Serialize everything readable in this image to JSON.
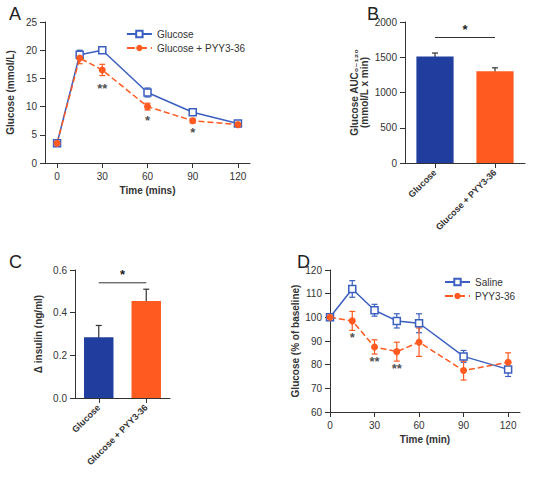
{
  "chart_data": [
    {
      "type": "line",
      "title": "A",
      "xlabel": "Time (mins)",
      "ylabel": "Glucose (mmol/L)",
      "x": [
        0,
        15,
        30,
        60,
        90,
        120
      ],
      "xlim": [
        -8,
        128
      ],
      "xticks": [
        0,
        30,
        60,
        90,
        120
      ],
      "ylim": [
        0,
        25
      ],
      "yticks": [
        0,
        5,
        10,
        15,
        20,
        25
      ],
      "grid": false,
      "legend": "upper right",
      "series": [
        {
          "name": "Glucose",
          "color": "#3b5fc0",
          "marker": "square-open",
          "line_style": "solid",
          "values": [
            3.5,
            19.2,
            20.0,
            12.5,
            9.0,
            7.0
          ],
          "errors": [
            0.2,
            0.8,
            0.5,
            0.8,
            0.3,
            0.3
          ]
        },
        {
          "name": "Glucose + PYY3-36",
          "color": "#ff5a1f",
          "marker": "circle",
          "line_style": "dashed",
          "values": [
            3.5,
            18.6,
            16.5,
            10.0,
            7.5,
            6.8
          ],
          "errors": [
            0.3,
            1.0,
            1.0,
            0.6,
            0.4,
            0.3
          ]
        }
      ],
      "annotations": [
        {
          "text": "**",
          "x": 30,
          "y": 13.2
        },
        {
          "text": "*",
          "x": 60,
          "y": 7.6
        },
        {
          "text": "*",
          "x": 90,
          "y": 5.4
        }
      ]
    },
    {
      "type": "bar",
      "title": "B",
      "ylabel": "Glucose AUC₀₋₁₂₀\n(mmol/L x min)",
      "categories": [
        "Glucose",
        "Glucose + PYY3-36"
      ],
      "values": [
        1510,
        1300
      ],
      "errors": [
        50,
        50
      ],
      "colors": [
        "#1f3e9e",
        "#ff5a1f"
      ],
      "ylim": [
        0,
        2000
      ],
      "yticks": [
        0,
        500,
        1000,
        1500,
        2000
      ],
      "grid": false,
      "annotations": [
        {
          "text": "*",
          "from": 0,
          "to": 1,
          "y": 1780
        }
      ]
    },
    {
      "type": "bar",
      "title": "C",
      "ylabel": "Δ insulin (ng/ml)",
      "categories": [
        "Glucose",
        "Glucose + PYY3-36"
      ],
      "values": [
        0.285,
        0.455
      ],
      "errors": [
        0.055,
        0.055
      ],
      "colors": [
        "#1f3e9e",
        "#ff5a1f"
      ],
      "ylim": [
        0,
        0.6
      ],
      "yticks": [
        {
          "value": 0,
          "label": "0.0"
        },
        0.2,
        0.4,
        0.6
      ],
      "grid": false,
      "annotations": [
        {
          "text": "*",
          "from": 0,
          "to": 1,
          "y": 0.54
        }
      ]
    },
    {
      "type": "line",
      "title": "D",
      "xlabel": "Time (min)",
      "ylabel": "Glucose (% of baseline)",
      "x": [
        0,
        15,
        30,
        45,
        60,
        90,
        120
      ],
      "xlim": [
        0,
        128
      ],
      "xticks": [
        0,
        30,
        60,
        90,
        120
      ],
      "ylim": [
        60,
        120
      ],
      "yticks": [
        60,
        70,
        80,
        90,
        100,
        110,
        120
      ],
      "grid": false,
      "legend": "upper right",
      "series": [
        {
          "name": "Saline",
          "color": "#3b5fc0",
          "marker": "square-open",
          "line_style": "solid",
          "values": [
            100,
            112,
            103,
            98.5,
            97.5,
            83.5,
            78
          ],
          "errors": [
            0,
            3.5,
            2.5,
            3,
            4,
            2.5,
            3
          ]
        },
        {
          "name": "PYY3-36",
          "color": "#ff5a1f",
          "marker": "circle",
          "line_style": "dashed",
          "values": [
            100,
            98.5,
            87.5,
            85.5,
            89.5,
            77.5,
            81
          ],
          "errors": [
            0,
            4,
            3,
            4,
            6,
            4,
            4
          ]
        }
      ],
      "annotations": [
        {
          "text": "*",
          "x": 15,
          "y": 91.5
        },
        {
          "text": "**",
          "x": 30,
          "y": 81.5
        },
        {
          "text": "**",
          "x": 45,
          "y": 78.5
        }
      ]
    }
  ]
}
